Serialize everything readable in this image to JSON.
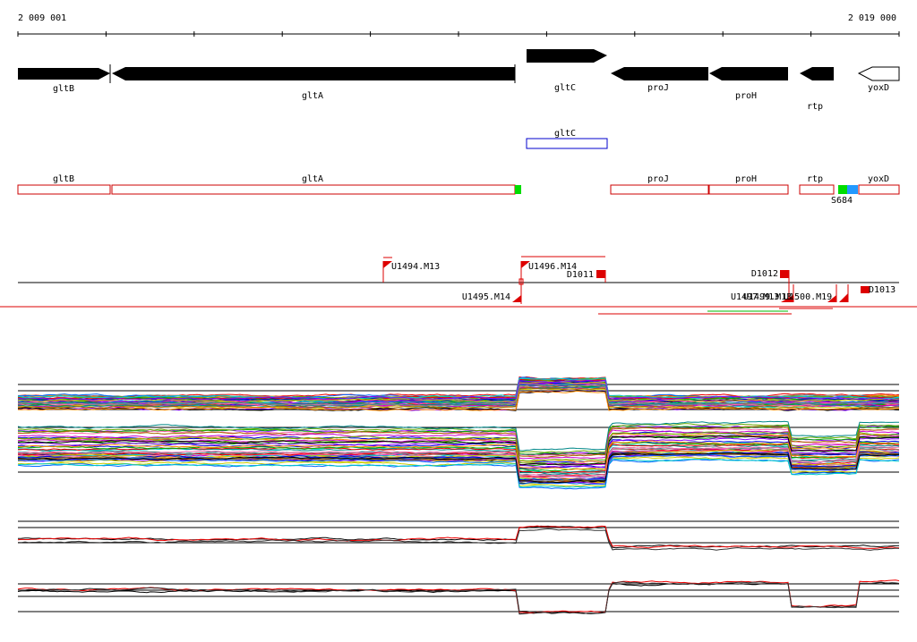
{
  "ruler": {
    "start": "2 009 001",
    "end": "2 019 000"
  },
  "genes": [
    "gltB",
    "gltA",
    "gltC",
    "proJ",
    "proH",
    "rtp",
    "yoxD"
  ],
  "operon_track": {
    "label": "gltC"
  },
  "transcript_track": {
    "labels": [
      "gltB",
      "gltA",
      "proJ",
      "proH",
      "rtp",
      "yoxD"
    ],
    "site": "S684"
  },
  "features": [
    "U1494.M13",
    "U1496.M14",
    "D1011",
    "U1495.M14",
    "D1012",
    "U1497.M13",
    "U1499.M13",
    "U1500.M19",
    "D1013"
  ]
}
